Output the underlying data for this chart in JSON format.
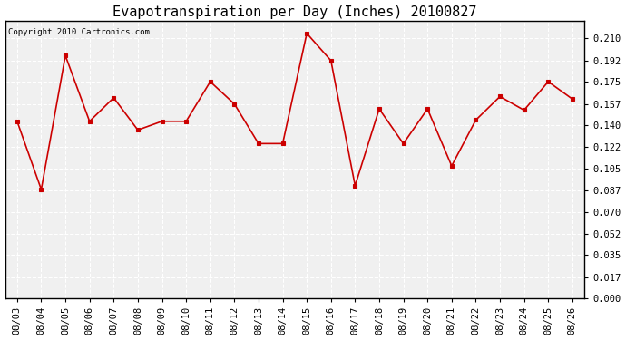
{
  "title": "Evapotranspiration per Day (Inches) 20100827",
  "copyright_text": "Copyright 2010 Cartronics.com",
  "x_labels": [
    "08/03",
    "08/04",
    "08/05",
    "08/06",
    "08/07",
    "08/08",
    "08/09",
    "08/10",
    "08/11",
    "08/12",
    "08/13",
    "08/14",
    "08/15",
    "08/16",
    "08/17",
    "08/18",
    "08/19",
    "08/20",
    "08/21",
    "08/22",
    "08/23",
    "08/24",
    "08/25",
    "08/26"
  ],
  "y_values": [
    0.143,
    0.088,
    0.196,
    0.143,
    0.162,
    0.136,
    0.143,
    0.143,
    0.175,
    0.157,
    0.125,
    0.125,
    0.214,
    0.192,
    0.091,
    0.153,
    0.125,
    0.153,
    0.107,
    0.144,
    0.163,
    0.152,
    0.175,
    0.161
  ],
  "line_color": "#cc0000",
  "marker_color": "#cc0000",
  "bg_color": "#ffffff",
  "plot_bg_color": "#f0f0f0",
  "grid_color": "#cccccc",
  "y_ticks": [
    0.0,
    0.017,
    0.035,
    0.052,
    0.07,
    0.087,
    0.105,
    0.122,
    0.14,
    0.157,
    0.175,
    0.192,
    0.21
  ],
  "ylim": [
    0.0,
    0.224
  ],
  "title_fontsize": 11,
  "tick_fontsize": 7.5,
  "copyright_fontsize": 6.5
}
